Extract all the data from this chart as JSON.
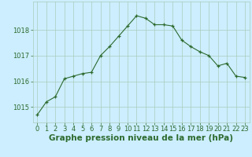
{
  "x": [
    0,
    1,
    2,
    3,
    4,
    5,
    6,
    7,
    8,
    9,
    10,
    11,
    12,
    13,
    14,
    15,
    16,
    17,
    18,
    19,
    20,
    21,
    22,
    23
  ],
  "y": [
    1014.7,
    1015.2,
    1015.4,
    1016.1,
    1016.2,
    1016.3,
    1016.35,
    1017.0,
    1017.35,
    1017.75,
    1018.15,
    1018.55,
    1018.45,
    1018.2,
    1018.2,
    1018.15,
    1017.6,
    1017.35,
    1017.15,
    1017.0,
    1016.6,
    1016.7,
    1016.2,
    1016.15
  ],
  "line_color": "#2d6a2d",
  "marker": "+",
  "marker_size": 3,
  "bg_color": "#cceeff",
  "grid_color": "#aaccbb",
  "title": "Graphe pression niveau de la mer (hPa)",
  "xlabel_ticks": [
    "0",
    "1",
    "2",
    "3",
    "4",
    "5",
    "6",
    "7",
    "8",
    "9",
    "10",
    "11",
    "12",
    "13",
    "14",
    "15",
    "16",
    "17",
    "18",
    "19",
    "20",
    "21",
    "22",
    "23"
  ],
  "yticks": [
    1015,
    1016,
    1017,
    1018
  ],
  "ylim": [
    1014.4,
    1019.1
  ],
  "xlim": [
    -0.5,
    23.5
  ],
  "title_fontsize": 7.5,
  "tick_fontsize": 6.0,
  "title_color": "#2d6a2d"
}
